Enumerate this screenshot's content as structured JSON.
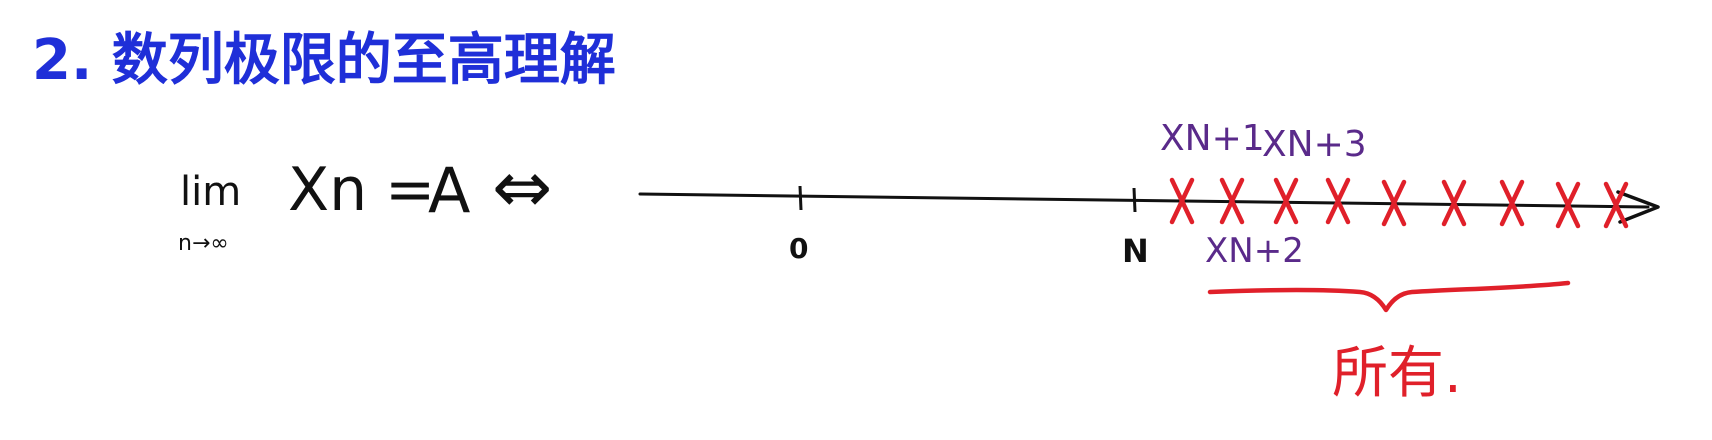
{
  "title": "2. 数列极限的至高理解",
  "formula": {
    "lim": "lim",
    "subscript": "n→∞",
    "lhs": "Xn",
    "equals": "=",
    "rhs": "A",
    "iff": "⇔"
  },
  "number_line": {
    "tick_zero": "0",
    "tick_n": "N",
    "label_n1": "XN+1",
    "label_n2": "XN+2",
    "label_n3": "XN+3",
    "brace_caption": "所有."
  },
  "colors": {
    "title": "#1f2fd8",
    "ink": "#111111",
    "purple": "#5a2a8a",
    "red": "#e0202a"
  }
}
